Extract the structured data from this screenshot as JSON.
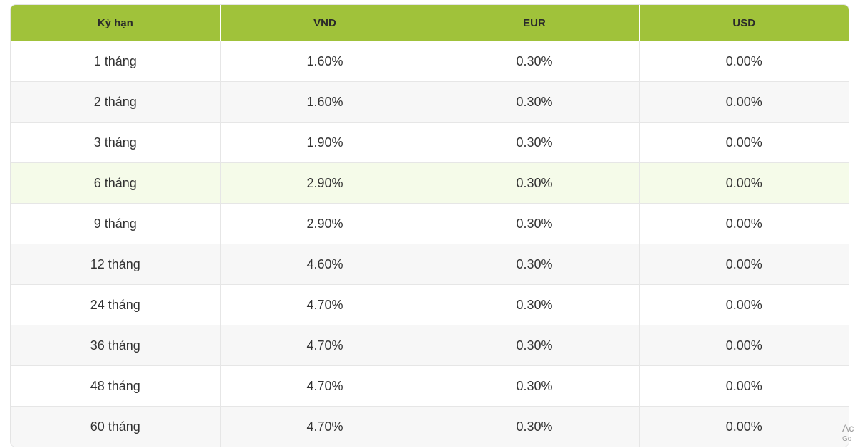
{
  "table": {
    "headers": [
      "Kỳ hạn",
      "VND",
      "EUR",
      "USD"
    ],
    "rows": [
      [
        "1 tháng",
        "1.60%",
        "0.30%",
        "0.00%"
      ],
      [
        "2 tháng",
        "1.60%",
        "0.30%",
        "0.00%"
      ],
      [
        "3 tháng",
        "1.90%",
        "0.30%",
        "0.00%"
      ],
      [
        "6 tháng",
        "2.90%",
        "0.30%",
        "0.00%"
      ],
      [
        "9 tháng",
        "2.90%",
        "0.30%",
        "0.00%"
      ],
      [
        "12 tháng",
        "4.60%",
        "0.30%",
        "0.00%"
      ],
      [
        "24 tháng",
        "4.70%",
        "0.30%",
        "0.00%"
      ],
      [
        "36 tháng",
        "4.70%",
        "0.30%",
        "0.00%"
      ],
      [
        "48 tháng",
        "4.70%",
        "0.30%",
        "0.00%"
      ],
      [
        "60 tháng",
        "4.70%",
        "0.30%",
        "0.00%"
      ]
    ]
  },
  "colors": {
    "header_bg": "#a0c23a",
    "highlight_row_bg": "#f5fbe9",
    "alt_row_bg": "#f7f7f7"
  },
  "corner": {
    "line1": "Ac",
    "line2": "Go"
  }
}
